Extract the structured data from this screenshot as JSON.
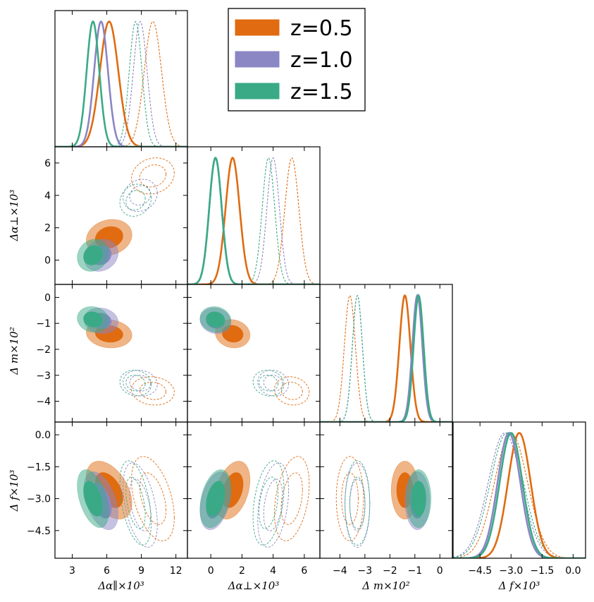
{
  "chart_data": {
    "type": "triangle_corner_plot",
    "parameters": [
      {
        "id": "apar",
        "label": "Δα∥×10³",
        "xlim": [
          1.5,
          13.0
        ],
        "ticks": [
          3,
          6,
          9,
          12
        ],
        "tick_labels": [
          "3",
          "6",
          "9",
          "12"
        ]
      },
      {
        "id": "aperp",
        "label": "Δα⊥×10³",
        "xlim": [
          -1.5,
          7.0
        ],
        "ticks": [
          0,
          2,
          4,
          6
        ],
        "tick_labels": [
          "0",
          "2",
          "4",
          "6"
        ]
      },
      {
        "id": "m",
        "label": "Δ m×10²",
        "xlim": [
          -4.8,
          0.5
        ],
        "ticks": [
          -4,
          -3,
          -2,
          -1,
          0
        ],
        "tick_labels": [
          "−4",
          "−3",
          "−2",
          "−1",
          "0"
        ]
      },
      {
        "id": "f",
        "label": "Δ f×10³",
        "xlim": [
          -5.8,
          0.6
        ],
        "ticks": [
          -4.5,
          -3.0,
          -1.5,
          0.0
        ],
        "tick_labels": [
          "−4.5",
          "−3.0",
          "−1.5",
          "0.0"
        ]
      }
    ],
    "y_axes": [
      {
        "row": 1,
        "label": "Δα⊥×10³",
        "ylim": [
          -1.5,
          7.0
        ],
        "ticks": [
          0,
          2,
          4,
          6
        ],
        "tick_labels": [
          "0",
          "2",
          "4",
          "6"
        ]
      },
      {
        "row": 2,
        "label": "Δ m×10²",
        "ylim": [
          -4.8,
          0.5
        ],
        "ticks": [
          -4,
          -3,
          -2,
          -1,
          0
        ],
        "tick_labels": [
          "−4",
          "−3",
          "−2",
          "−1",
          "0"
        ]
      },
      {
        "row": 3,
        "label": "Δ f×10³",
        "ylim": [
          -5.8,
          0.6
        ],
        "ticks": [
          -4.5,
          -3.0,
          -1.5,
          0.0
        ],
        "tick_labels": [
          "−4.5",
          "−3.0",
          "−1.5",
          "0.0"
        ]
      }
    ],
    "legend": {
      "placement": "top-right",
      "entries": [
        "z=0.5",
        "z=1.0",
        "z=1.5"
      ]
    },
    "series": [
      {
        "name": "z=0.5",
        "color": "#e06b10",
        "filled": {
          "mean": [
            6.2,
            1.4,
            -1.4,
            -2.6
          ],
          "sigma": [
            0.8,
            0.45,
            0.22,
            0.55
          ]
        },
        "dashed": {
          "mean": [
            10.0,
            5.2,
            -3.6,
            -3.0
          ],
          "sigma": [
            0.75,
            0.45,
            0.22,
            0.8
          ]
        }
      },
      {
        "name": "z=1.0",
        "color": "#8b86c4",
        "filled": {
          "mean": [
            5.5,
            0.3,
            -0.9,
            -3.1
          ],
          "sigma": [
            0.6,
            0.4,
            0.2,
            0.55
          ]
        },
        "dashed": {
          "mean": [
            8.9,
            4.0,
            -3.3,
            -3.3
          ],
          "sigma": [
            0.6,
            0.4,
            0.2,
            0.8
          ]
        }
      },
      {
        "name": "z=1.5",
        "color": "#3aaa86",
        "filled": {
          "mean": [
            4.8,
            0.3,
            -0.85,
            -3.0
          ],
          "sigma": [
            0.55,
            0.4,
            0.2,
            0.55
          ]
        },
        "dashed": {
          "mean": [
            8.5,
            3.7,
            -3.3,
            -3.2
          ],
          "sigma": [
            0.55,
            0.4,
            0.2,
            0.8
          ]
        }
      }
    ],
    "correlations": {
      "apar_aperp": 0.15,
      "apar_m": -0.1,
      "aperp_m": -0.1,
      "apar_f": -0.45,
      "aperp_f": 0.35,
      "m_f": 0.0
    }
  }
}
